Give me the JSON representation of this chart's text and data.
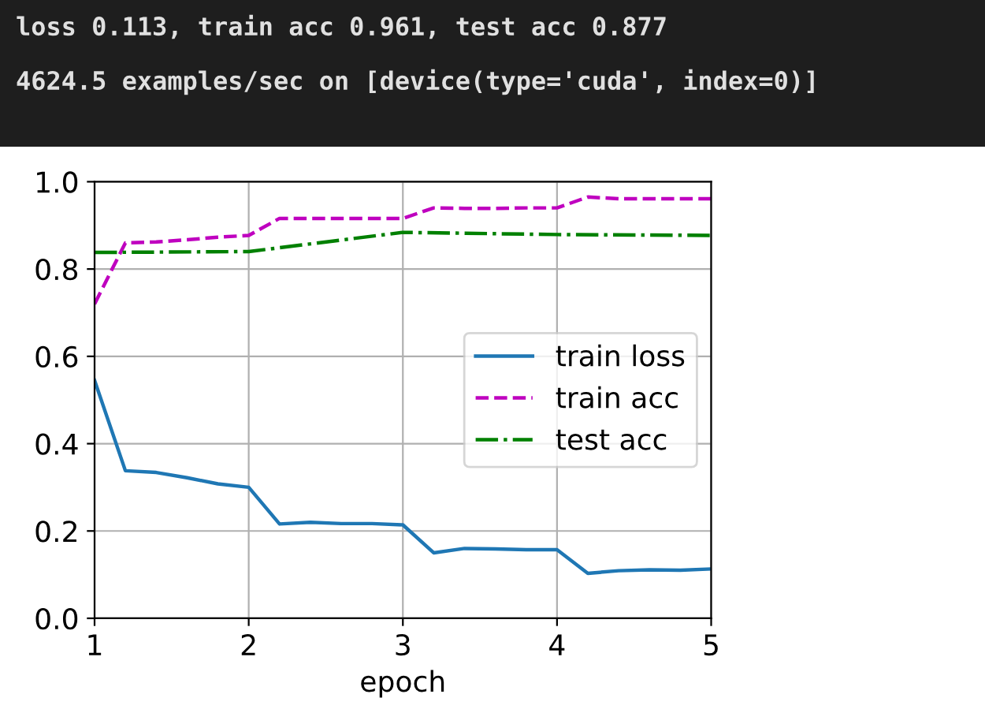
{
  "chart_data": {
    "type": "line",
    "xlabel": "epoch",
    "annotations": [
      "loss 0.113, train acc 0.961, test acc 0.877",
      "4624.5 examples/sec on [device(type='cuda', index=0)]"
    ],
    "series": [
      {
        "name": "train loss",
        "color": "#1f77b4",
        "line_style": "solid",
        "x": [
          1,
          1.2,
          1.4,
          1.6,
          1.8,
          2,
          2.2,
          2.4,
          2.6,
          2.8,
          3,
          3.2,
          3.4,
          3.6,
          3.8,
          4,
          4.2,
          4.4,
          4.6,
          4.8,
          5
        ],
        "values": [
          0.545,
          0.338,
          0.334,
          0.322,
          0.308,
          0.3,
          0.216,
          0.22,
          0.217,
          0.217,
          0.214,
          0.15,
          0.16,
          0.159,
          0.157,
          0.157,
          0.103,
          0.109,
          0.111,
          0.11,
          0.113
        ]
      },
      {
        "name": "train acc",
        "color": "#bf00bf",
        "line_style": "dashed",
        "x": [
          1,
          1.2,
          1.4,
          1.6,
          1.8,
          2,
          2.2,
          2.4,
          2.6,
          2.8,
          3,
          3.2,
          3.4,
          3.6,
          3.8,
          4,
          4.2,
          4.4,
          4.6,
          4.8,
          5
        ],
        "values": [
          0.72,
          0.86,
          0.862,
          0.867,
          0.873,
          0.877,
          0.916,
          0.916,
          0.916,
          0.916,
          0.916,
          0.94,
          0.939,
          0.939,
          0.94,
          0.94,
          0.965,
          0.961,
          0.961,
          0.961,
          0.961
        ]
      },
      {
        "name": "test acc",
        "color": "#008000",
        "line_style": "dashdot",
        "x": [
          1,
          2,
          3,
          4,
          5
        ],
        "values": [
          0.838,
          0.84,
          0.884,
          0.879,
          0.877
        ]
      }
    ],
    "xlim": [
      1,
      5
    ],
    "xticks": [
      1,
      2,
      3,
      4,
      5
    ],
    "ylim": [
      0,
      1
    ],
    "yticks": [
      {
        "value": 0,
        "label": "0.0"
      },
      0.2,
      0.4,
      0.6,
      0.8,
      {
        "value": 1,
        "label": "1.0"
      }
    ],
    "grid": true,
    "legend": "right",
    "marker": "none"
  }
}
